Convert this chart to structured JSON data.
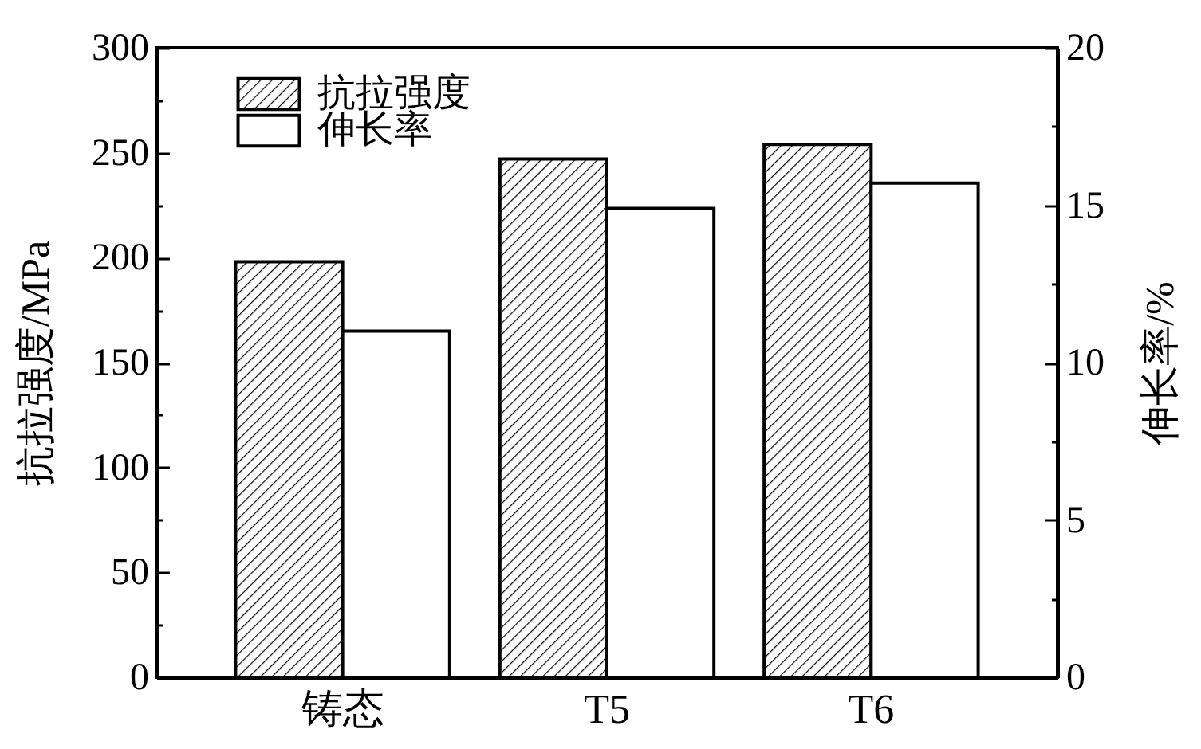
{
  "chart_data": {
    "type": "bar",
    "categories": [
      "铸态",
      "T5",
      "T6"
    ],
    "series": [
      {
        "name": "抗拉强度",
        "color": "#000000",
        "values": [
          198,
          247,
          254
        ]
      },
      {
        "name": "伸长率",
        "color": "#ffffff",
        "values": [
          11.0,
          14.9,
          15.7
        ],
        "axis": "y2"
      }
    ],
    "ylabel": "抗拉强度/MPa",
    "y2label": "伸长率/%",
    "ylim": [
      0,
      300
    ],
    "yticks": [
      0,
      {
        "value": 25,
        "label": null
      },
      50,
      {
        "value": 75,
        "label": null
      },
      100,
      {
        "value": 125,
        "label": null
      },
      150,
      {
        "value": 175,
        "label": null
      },
      200,
      {
        "value": 225,
        "label": null
      },
      250,
      {
        "value": 275,
        "label": null
      },
      300
    ],
    "y2lim": [
      0,
      20
    ],
    "y2ticks": [
      0,
      {
        "value": 2.5,
        "label": null
      },
      5,
      {
        "value": 7.5,
        "label": null
      },
      10,
      {
        "value": 12.5,
        "label": null
      },
      15,
      {
        "value": 17.5,
        "label": null
      },
      20
    ],
    "legend": "top left"
  }
}
